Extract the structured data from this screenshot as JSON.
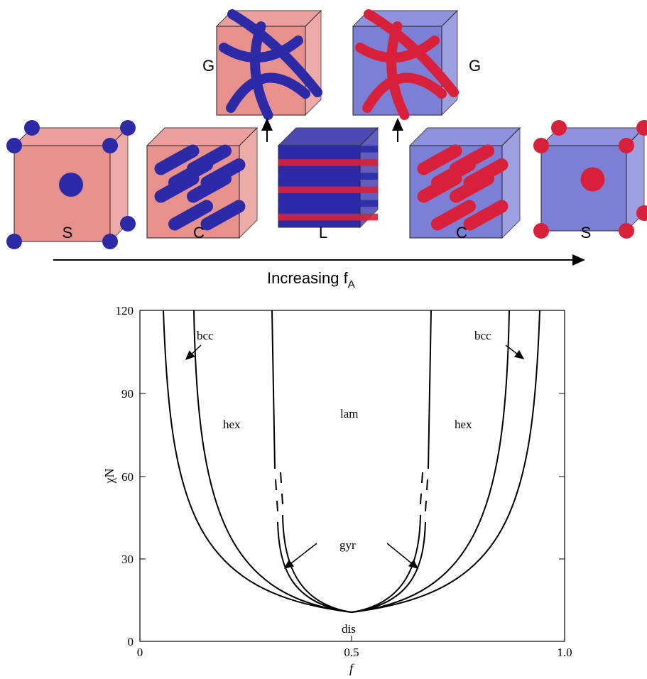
{
  "morphologies": {
    "top_labels": [
      "G",
      "G"
    ],
    "row_labels": [
      "S",
      "C",
      "L",
      "C",
      "S"
    ],
    "axis_label": "Increasing f",
    "axis_subscript": "A"
  },
  "phase_diagram": {
    "y_label": "χN",
    "x_label": "f",
    "yticks": [
      "0",
      "30",
      "60",
      "90",
      "120"
    ],
    "xticks": [
      "0",
      "0.5",
      "1.0"
    ],
    "regions": {
      "bcc_left": "bcc",
      "bcc_right": "bcc",
      "hex_left": "hex",
      "hex_right": "hex",
      "lam": "lam",
      "gyr": "gyr",
      "dis": "dis"
    }
  }
}
